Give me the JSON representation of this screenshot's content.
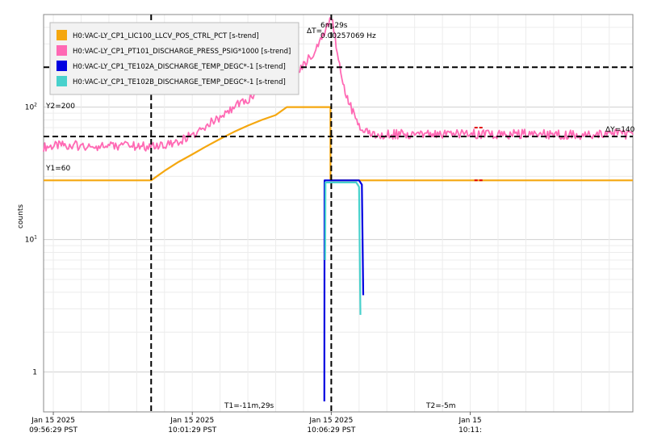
{
  "chart_data": {
    "type": "line",
    "ylabel": "counts",
    "yscale": "log",
    "ylim": [
      0.5,
      500
    ],
    "xlim": [
      -15.35,
      5.85
    ],
    "grid": true,
    "legend_position": "top-left",
    "yticks": [
      {
        "value": 1,
        "base": "1",
        "exp": ""
      },
      {
        "value": 10,
        "base": "10",
        "exp": "1"
      },
      {
        "value": 100,
        "base": "10",
        "exp": "2"
      }
    ],
    "xticks": [
      {
        "value": -15,
        "date": "Jan 15 2025",
        "time": "09:56:29 PST"
      },
      {
        "value": -10,
        "date": "Jan 15 2025",
        "time": "10:01:29 PST"
      },
      {
        "value": -5,
        "date": "Jan 15 2025",
        "time": "10:06:29 PST"
      },
      {
        "value": 0,
        "date": "Jan 15",
        "time": "10:11:"
      }
    ],
    "cursors": {
      "T1": {
        "x": -11.48,
        "label": "T1=-11m,29s"
      },
      "T2": {
        "x": -5,
        "label": "T2=-5m"
      },
      "Y1": {
        "y": 60,
        "label": "Y1=60"
      },
      "Y2": {
        "y": 200,
        "label": "Y2=200"
      },
      "delta_t_label": "ΔT=",
      "delta_t_value": "6m,29s",
      "delta_t_freq": "0.00257069 Hz",
      "delta_y_label": "ΔY=140"
    },
    "series": [
      {
        "name": "H0:VAC-LY_CP1_LIC100_LLCV_POS_CTRL_PCT [s-trend]",
        "color": "#f5a70f",
        "x": [
          -15.35,
          -11.5,
          -11.48,
          -11,
          -10.5,
          -10,
          -9.5,
          -9,
          -8.5,
          -8,
          -7.5,
          -7,
          -6.6,
          -5.05,
          -5.03,
          -5.03,
          -5.02,
          0.15,
          0.15,
          0.45,
          0.45,
          5.85
        ],
        "y": [
          28,
          28,
          28,
          33,
          38.5,
          44,
          50.5,
          57.5,
          65,
          72.5,
          80,
          87,
          100,
          100,
          100,
          28,
          28,
          28,
          28,
          28,
          28,
          28
        ]
      },
      {
        "name": "H0:VAC-LY_CP1_PT101_DISCHARGE_PRESS_PSIG*1000 [s-trend]",
        "color": "#ff69b4",
        "x": [
          -15.35,
          -14.5,
          -13.5,
          -12.5,
          -11.5,
          -11,
          -10.5,
          -10,
          -9.5,
          -9,
          -8.5,
          -8,
          -7.5,
          -7,
          -6.5,
          -6,
          -5.6,
          -5.3,
          -5.15,
          -5.05,
          -4.95,
          -4.7,
          -4.5,
          -4.3,
          -4.0,
          -3.8,
          -3.5,
          -3.0,
          -2.0,
          -1.0,
          0,
          1.0,
          2.0,
          3.0,
          4.0,
          5.0,
          5.85
        ],
        "y": [
          50,
          52,
          50,
          51,
          50,
          51,
          55,
          62,
          72,
          85,
          100,
          115,
          130,
          150,
          170,
          210,
          260,
          340,
          400,
          440,
          430,
          200,
          130,
          100,
          75,
          65,
          63,
          62,
          63,
          62,
          63,
          62,
          63,
          62,
          62,
          63,
          62
        ]
      },
      {
        "name": "H0:VAC-LY_CP1_TE102A_DISCHARGE_TEMP_DEGC*-1 [s-trend]",
        "color": "#0000e0",
        "x": [
          -5.25,
          -5.24,
          -4.0,
          -3.9,
          -3.85
        ],
        "y": [
          0.6,
          28,
          28,
          26,
          3.8
        ]
      },
      {
        "name": "H0:VAC-LY_CP1_TE102B_DISCHARGE_TEMP_DEGC*-1 [s-trend]",
        "color": "#48d1cc",
        "x": [
          -5.22,
          -5.21,
          -4.1,
          -4.0,
          -3.95
        ],
        "y": [
          7,
          27,
          27,
          25,
          2.7
        ]
      }
    ],
    "gap_markers": [
      {
        "x_start": 0.15,
        "x_end": 0.45,
        "y": 28
      },
      {
        "x_start": 0.15,
        "x_end": 0.45,
        "y": 70
      }
    ]
  }
}
